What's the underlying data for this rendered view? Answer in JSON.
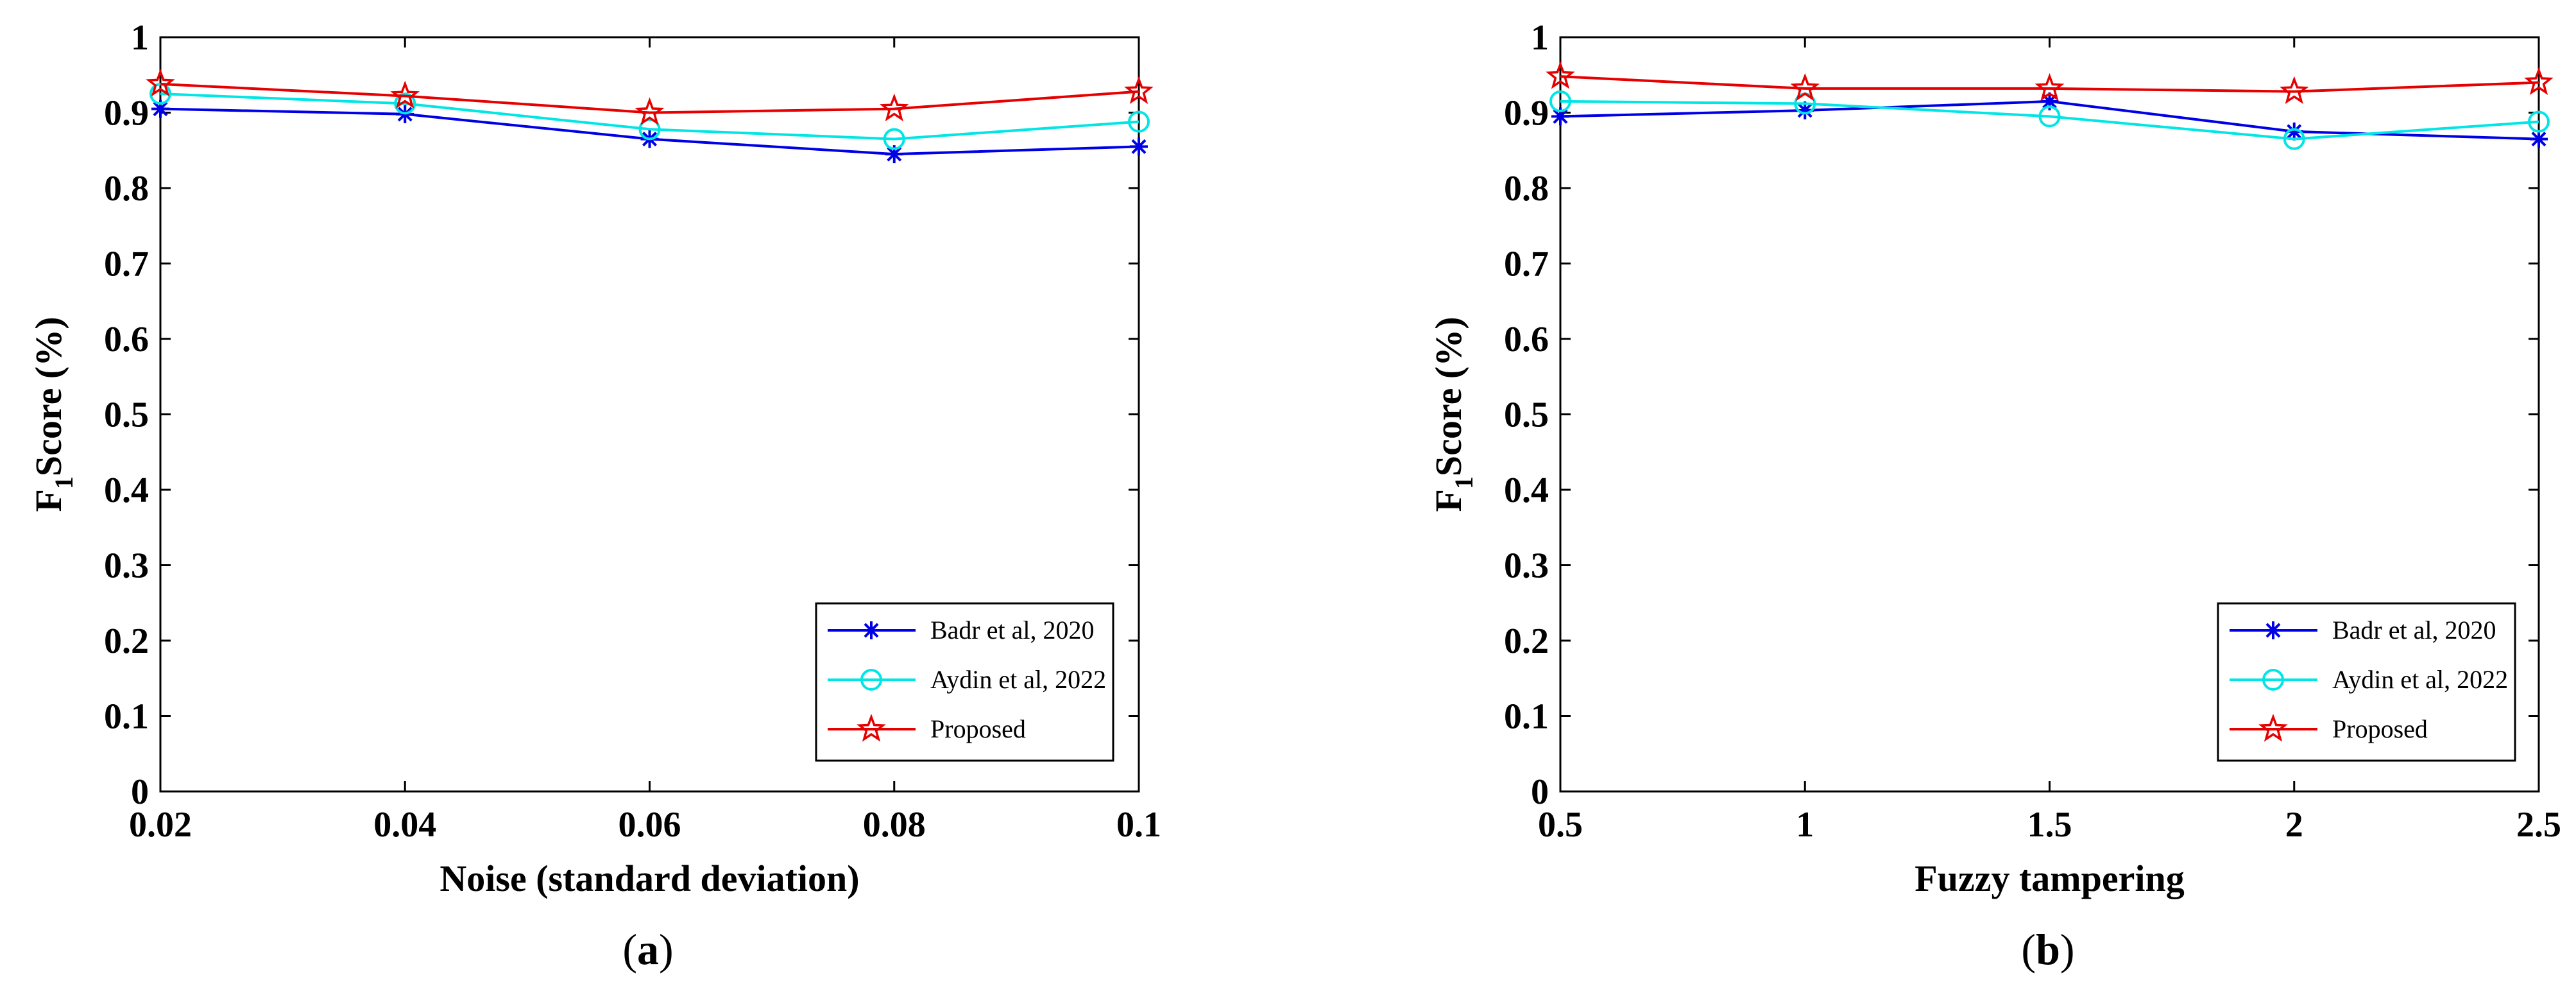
{
  "chart_data": [
    {
      "type": "line",
      "panel_label": "a",
      "title": "",
      "xlabel": "Noise (standard deviation)",
      "ylabel_prefix": "F",
      "ylabel_subscript": "1",
      "ylabel_suffix": "Score (%)",
      "x": [
        0.02,
        0.04,
        0.06,
        0.08,
        0.1
      ],
      "xticks": [
        "0.02",
        "0.04",
        "0.06",
        "0.08",
        "0.1"
      ],
      "xlim": [
        0.02,
        0.1
      ],
      "ylim": [
        0,
        1
      ],
      "yticks": [
        "0",
        "0.1",
        "0.2",
        "0.3",
        "0.4",
        "0.5",
        "0.6",
        "0.7",
        "0.8",
        "0.9",
        "1"
      ],
      "grid": false,
      "legend_position": "bottom-right",
      "series": [
        {
          "name": "Badr et al, 2020",
          "color": "#0000e6",
          "marker": "asterisk",
          "values": [
            0.905,
            0.898,
            0.865,
            0.845,
            0.855
          ]
        },
        {
          "name": "Aydin et al, 2022",
          "color": "#00e5e5",
          "marker": "circle",
          "values": [
            0.925,
            0.912,
            0.878,
            0.865,
            0.888
          ]
        },
        {
          "name": "Proposed",
          "color": "#e60000",
          "marker": "star",
          "values": [
            0.938,
            0.922,
            0.9,
            0.905,
            0.928
          ]
        }
      ]
    },
    {
      "type": "line",
      "panel_label": "b",
      "title": "",
      "xlabel": "Fuzzy tampering",
      "ylabel_prefix": "F",
      "ylabel_subscript": "1",
      "ylabel_suffix": "Score (%)",
      "x": [
        0.5,
        1,
        1.5,
        2,
        2.5
      ],
      "xticks": [
        "0.5",
        "1",
        "1.5",
        "2",
        "2.5"
      ],
      "xlim": [
        0.5,
        2.5
      ],
      "ylim": [
        0,
        1
      ],
      "yticks": [
        "0",
        "0.1",
        "0.2",
        "0.3",
        "0.4",
        "0.5",
        "0.6",
        "0.7",
        "0.8",
        "0.9",
        "1"
      ],
      "grid": false,
      "legend_position": "bottom-right",
      "series": [
        {
          "name": "Badr et al, 2020",
          "color": "#0000e6",
          "marker": "asterisk",
          "values": [
            0.895,
            0.903,
            0.915,
            0.875,
            0.865
          ]
        },
        {
          "name": "Aydin et al, 2022",
          "color": "#00e5e5",
          "marker": "circle",
          "values": [
            0.915,
            0.912,
            0.895,
            0.865,
            0.888
          ]
        },
        {
          "name": "Proposed",
          "color": "#e60000",
          "marker": "star",
          "values": [
            0.948,
            0.932,
            0.932,
            0.928,
            0.94
          ]
        }
      ]
    }
  ]
}
